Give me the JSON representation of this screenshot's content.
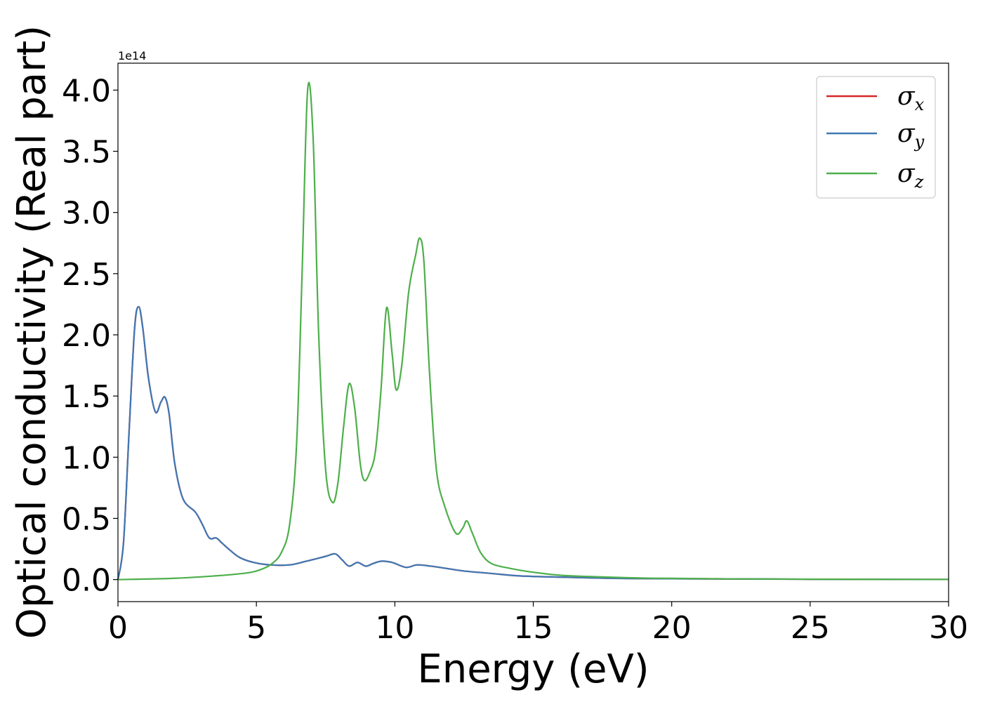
{
  "chart_data": {
    "type": "line",
    "xlabel": "Energy (eV)",
    "ylabel": "Optical conductivity (Real part)",
    "y_offset_label": "1e14",
    "xlim": [
      0,
      30
    ],
    "ylim": [
      -0.18,
      4.22
    ],
    "x_ticks": [
      0,
      5,
      10,
      15,
      20,
      25,
      30
    ],
    "x_tick_labels": [
      "0",
      "5",
      "10",
      "15",
      "20",
      "25",
      "30"
    ],
    "y_ticks": [
      0.0,
      0.5,
      1.0,
      1.5,
      2.0,
      2.5,
      3.0,
      3.5,
      4.0
    ],
    "y_tick_labels": [
      "0.0",
      "0.5",
      "1.0",
      "1.5",
      "2.0",
      "2.5",
      "3.0",
      "3.5",
      "4.0"
    ],
    "grid": false,
    "legend_position": "top-right",
    "colors": {
      "x": "#d62728",
      "y": "#3f78b4",
      "z": "#4daf4a"
    },
    "series": [
      {
        "name": "σx",
        "symbol": "σ",
        "subscript": "x",
        "color": "#d62728",
        "x": [
          0,
          0.2,
          0.4,
          0.6,
          0.75,
          0.9,
          1.1,
          1.35,
          1.55,
          1.7,
          1.85,
          2.05,
          2.35,
          2.8,
          3.05,
          3.3,
          3.55,
          3.75,
          4.05,
          4.4,
          4.9,
          5.5,
          6.2,
          6.8,
          7.5,
          7.85,
          8.1,
          8.35,
          8.65,
          8.95,
          9.2,
          9.5,
          9.9,
          10.4,
          10.8,
          11.3,
          11.9,
          12.5,
          13.5,
          14.5,
          16,
          18,
          20,
          25,
          30
        ],
        "y": [
          0.0,
          0.3,
          1.2,
          2.05,
          2.23,
          2.05,
          1.65,
          1.37,
          1.45,
          1.49,
          1.35,
          0.95,
          0.66,
          0.55,
          0.45,
          0.34,
          0.34,
          0.3,
          0.24,
          0.18,
          0.14,
          0.12,
          0.12,
          0.15,
          0.19,
          0.21,
          0.16,
          0.11,
          0.14,
          0.11,
          0.13,
          0.15,
          0.14,
          0.1,
          0.12,
          0.11,
          0.09,
          0.07,
          0.05,
          0.03,
          0.02,
          0.01,
          0.007,
          0.003,
          0.001
        ]
      },
      {
        "name": "σy",
        "symbol": "σ",
        "subscript": "y",
        "color": "#3f78b4",
        "x": [
          0,
          0.2,
          0.4,
          0.6,
          0.75,
          0.9,
          1.1,
          1.35,
          1.55,
          1.7,
          1.85,
          2.05,
          2.35,
          2.8,
          3.05,
          3.3,
          3.55,
          3.75,
          4.05,
          4.4,
          4.9,
          5.5,
          6.2,
          6.8,
          7.5,
          7.85,
          8.1,
          8.35,
          8.65,
          8.95,
          9.2,
          9.5,
          9.9,
          10.4,
          10.8,
          11.3,
          11.9,
          12.5,
          13.5,
          14.5,
          16,
          18,
          20,
          25,
          30
        ],
        "y": [
          0.0,
          0.3,
          1.2,
          2.05,
          2.23,
          2.05,
          1.65,
          1.37,
          1.45,
          1.49,
          1.35,
          0.95,
          0.66,
          0.55,
          0.45,
          0.34,
          0.34,
          0.3,
          0.24,
          0.18,
          0.14,
          0.12,
          0.12,
          0.15,
          0.19,
          0.21,
          0.16,
          0.11,
          0.14,
          0.11,
          0.13,
          0.15,
          0.14,
          0.1,
          0.12,
          0.11,
          0.09,
          0.07,
          0.05,
          0.03,
          0.02,
          0.01,
          0.007,
          0.003,
          0.001
        ]
      },
      {
        "name": "σz",
        "symbol": "σ",
        "subscript": "z",
        "color": "#4daf4a",
        "x": [
          0,
          2,
          3.5,
          4.5,
          5.0,
          5.5,
          5.9,
          6.2,
          6.45,
          6.65,
          6.85,
          7.05,
          7.25,
          7.5,
          7.75,
          7.95,
          8.15,
          8.35,
          8.55,
          8.75,
          8.9,
          9.1,
          9.3,
          9.5,
          9.7,
          9.9,
          10.05,
          10.25,
          10.5,
          10.75,
          10.9,
          11.05,
          11.25,
          11.5,
          11.8,
          12.2,
          12.45,
          12.6,
          12.8,
          13.1,
          13.5,
          14.2,
          15,
          16,
          17,
          18,
          19,
          20,
          22,
          25,
          30
        ],
        "y": [
          0.0,
          0.01,
          0.03,
          0.05,
          0.07,
          0.12,
          0.22,
          0.45,
          1.1,
          2.5,
          4.0,
          3.6,
          2.0,
          0.9,
          0.63,
          0.8,
          1.25,
          1.6,
          1.4,
          0.95,
          0.81,
          0.88,
          1.05,
          1.55,
          2.22,
          1.85,
          1.55,
          1.75,
          2.35,
          2.65,
          2.79,
          2.6,
          1.7,
          0.9,
          0.6,
          0.38,
          0.42,
          0.48,
          0.38,
          0.22,
          0.13,
          0.09,
          0.06,
          0.035,
          0.025,
          0.018,
          0.012,
          0.01,
          0.006,
          0.003,
          0.001
        ]
      }
    ]
  }
}
